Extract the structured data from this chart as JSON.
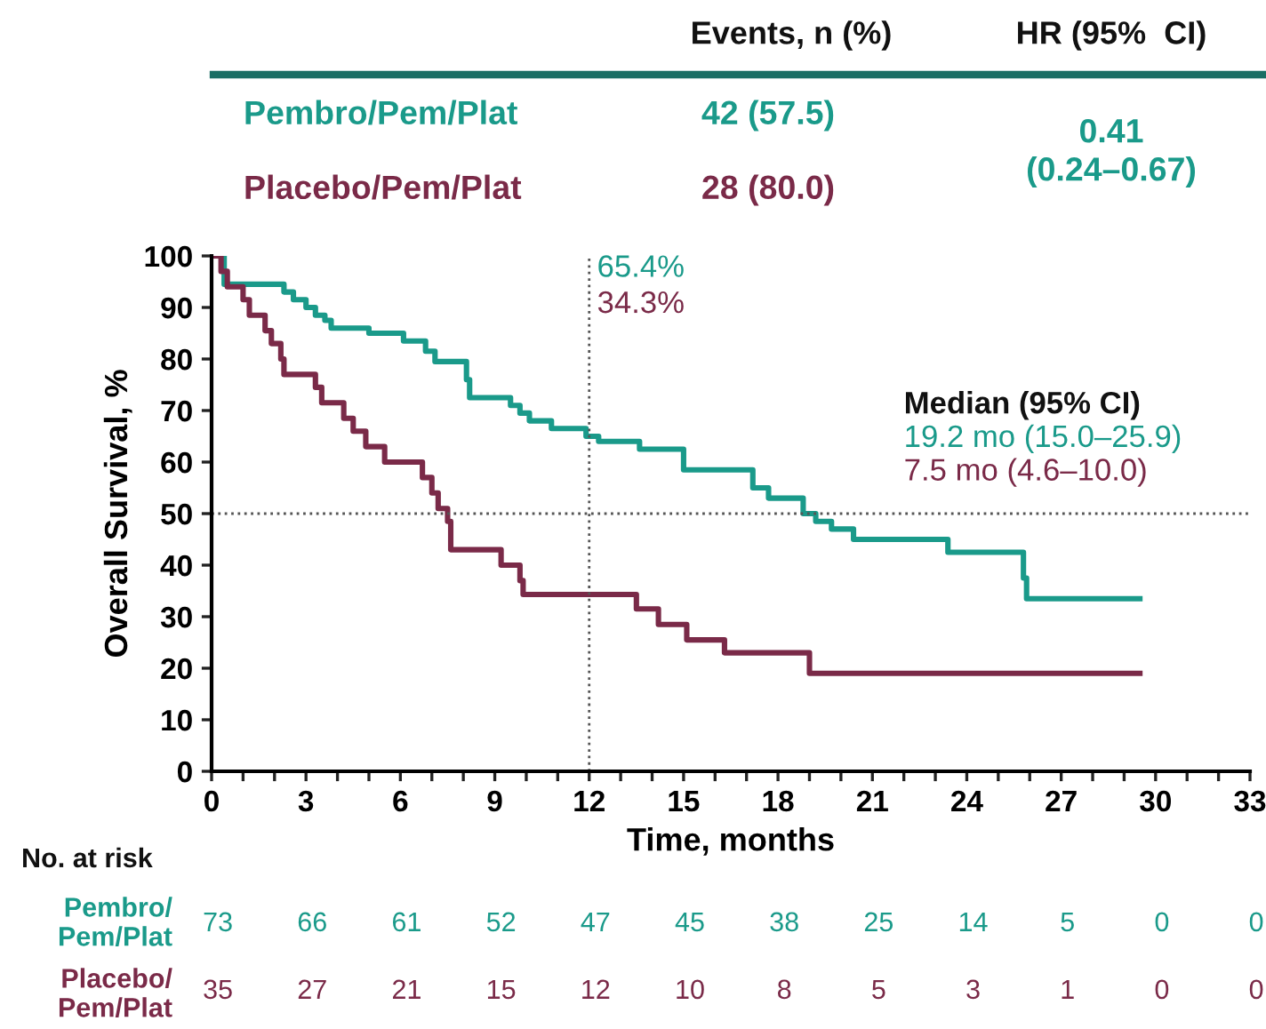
{
  "chart_data": {
    "type": "step",
    "xlabel": "Time, months",
    "ylabel": "Overall Survival, %",
    "xlim": [
      0,
      33
    ],
    "ylim": [
      0,
      100
    ],
    "xticks": [
      0,
      {
        "value": 1,
        "label": null
      },
      {
        "value": 2,
        "label": null
      },
      3,
      {
        "value": 4,
        "label": null
      },
      {
        "value": 5,
        "label": null
      },
      6,
      {
        "value": 7,
        "label": null
      },
      {
        "value": 8,
        "label": null
      },
      9,
      {
        "value": 10,
        "label": null
      },
      {
        "value": 11,
        "label": null
      },
      12,
      {
        "value": 13,
        "label": null
      },
      {
        "value": 14,
        "label": null
      },
      15,
      {
        "value": 16,
        "label": null
      },
      {
        "value": 17,
        "label": null
      },
      18,
      {
        "value": 19,
        "label": null
      },
      {
        "value": 20,
        "label": null
      },
      21,
      {
        "value": 22,
        "label": null
      },
      {
        "value": 23,
        "label": null
      },
      24,
      {
        "value": 25,
        "label": null
      },
      {
        "value": 26,
        "label": null
      },
      27,
      {
        "value": 28,
        "label": null
      },
      {
        "value": 29,
        "label": null
      },
      30,
      {
        "value": 31,
        "label": null
      },
      {
        "value": 32,
        "label": null
      },
      33
    ],
    "yticks": [
      0,
      10,
      20,
      30,
      40,
      50,
      60,
      70,
      80,
      90,
      100
    ],
    "grid": false,
    "legend": false,
    "marker": "none",
    "line_style": "solid",
    "series": [
      {
        "color": "#1a9a8a",
        "x": [
          0,
          0.4,
          2.3,
          2.6,
          3.0,
          3.3,
          3.6,
          3.8,
          5.0,
          6.1,
          6.8,
          7.1,
          8.1,
          8.2,
          9.5,
          9.8,
          10.1,
          10.8,
          11.9,
          12.3,
          13.6,
          15.0,
          17.2,
          17.7,
          18.8,
          19.2,
          19.7,
          20.4,
          23.4,
          25.8,
          25.9,
          29.5
        ],
        "values": [
          100,
          94.5,
          93,
          91.5,
          90,
          88.5,
          87.5,
          86,
          85,
          83.5,
          81.5,
          79.5,
          76,
          72.5,
          71,
          69.5,
          68,
          66.5,
          65,
          64,
          62.5,
          58.5,
          55,
          53,
          50,
          48.5,
          47,
          45,
          42.5,
          37.5,
          33.5,
          33.5
        ]
      },
      {
        "color": "#7a2a48",
        "x": [
          0,
          0.3,
          0.5,
          1.0,
          1.2,
          1.7,
          1.9,
          2.2,
          2.3,
          3.3,
          3.5,
          4.2,
          4.5,
          4.9,
          5.5,
          6.7,
          7.0,
          7.2,
          7.5,
          7.6,
          9.2,
          9.8,
          9.9,
          13.5,
          14.2,
          15.1,
          16.3,
          19.0,
          29.5
        ],
        "values": [
          100,
          97,
          94,
          91.5,
          88.5,
          85.5,
          83,
          80,
          77,
          74.5,
          71.5,
          68.5,
          66,
          63,
          60,
          57,
          54,
          51,
          48.5,
          43,
          40,
          37,
          34.3,
          31.5,
          28.5,
          25.5,
          23,
          19,
          19
        ]
      }
    ],
    "ref_lines": [
      {
        "axis": "y",
        "value": 50,
        "line_style": "dotted",
        "color": "#555555"
      },
      {
        "axis": "x",
        "value": 12,
        "line_style": "dotted",
        "color": "#555555"
      }
    ],
    "annotations": [
      "Events, n (%)",
      "HR (95%  CI)",
      "Pembro/Pem/Plat",
      "42 (57.5)",
      "Placebo/Pem/Plat",
      "28 (80.0)",
      "0.41\n(0.24–0.67)",
      "65.4%",
      "34.3%",
      "Median (95% CI)",
      "19.2 mo (15.0–25.9)",
      "7.5 mo (4.6–10.0)",
      "No. at risk",
      "Pembro/\nPem/Plat",
      "Placebo/\nPem/Plat",
      "73",
      "66",
      "61",
      "52",
      "47",
      "45",
      "38",
      "25",
      "14",
      "5",
      "0",
      "0",
      "35",
      "27",
      "21",
      "15",
      "12",
      "10",
      "8",
      "5",
      "3",
      "1",
      "0",
      "0"
    ]
  }
}
